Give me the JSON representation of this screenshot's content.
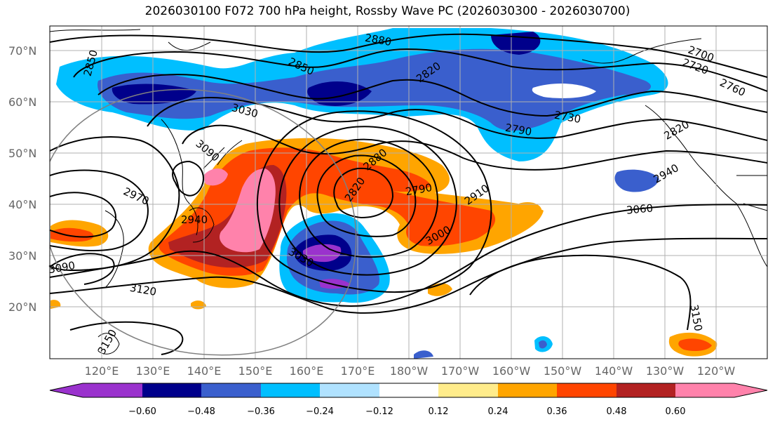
{
  "title": "2026030100 F072 700 hPa height, Rossby Wave PC (2026030300 - 2026030700)",
  "lat_labels": [
    "70°N",
    "60°N",
    "50°N",
    "40°N",
    "30°N",
    "20°N"
  ],
  "lon_labels": [
    "120°E",
    "130°E",
    "140°E",
    "150°E",
    "160°E",
    "170°E",
    "180°W",
    "170°W",
    "160°W",
    "150°W",
    "140°W",
    "130°W",
    "120°W"
  ],
  "contour_labels": [
    "2850",
    "2880",
    "2820",
    "2850",
    "2700",
    "2720",
    "2760",
    "3030",
    "3090",
    "2730",
    "2790",
    "2820",
    "2880",
    "2970",
    "2940",
    "2820",
    "2790",
    "2910",
    "2940",
    "3060",
    "3000",
    "3030",
    "3090",
    "3120",
    "3150",
    "3150"
  ],
  "colorbar": {
    "colors": [
      "#9a32cd",
      "#00008b",
      "#3a5fcd",
      "#00bfff",
      "#b0e2ff",
      "#ffffff",
      "#ffec8b",
      "#ffa500",
      "#ff4500",
      "#b22222",
      "#ff82ab"
    ],
    "ticks": [
      "−0.60",
      "−0.48",
      "−0.36",
      "−0.24",
      "−0.12",
      "0.12",
      "0.24",
      "0.36",
      "0.48",
      "0.60"
    ]
  }
}
